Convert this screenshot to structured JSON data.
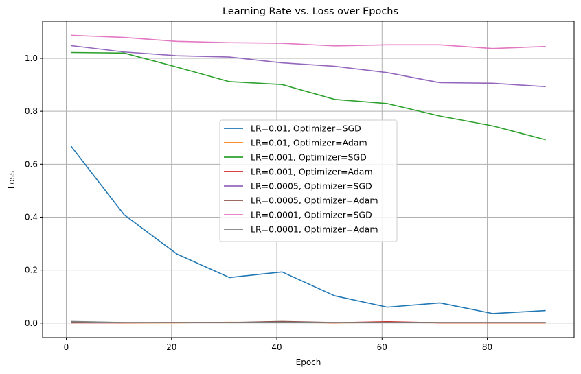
{
  "chart_data": {
    "type": "line",
    "title": "Learning Rate vs. Loss over Epochs",
    "xlabel": "Epoch",
    "ylabel": "Loss",
    "xlim": [
      -4.5,
      96.5
    ],
    "ylim": [
      -0.055,
      1.14
    ],
    "xticks": [
      0,
      20,
      40,
      60,
      80
    ],
    "yticks": [
      0.0,
      0.2,
      0.4,
      0.6,
      0.8,
      1.0
    ],
    "ytick_labels": [
      "0.0",
      "0.2",
      "0.4",
      "0.6",
      "0.8",
      "1.0"
    ],
    "grid": true,
    "legend_position": "center",
    "x": [
      1,
      11,
      21,
      31,
      41,
      51,
      61,
      71,
      81,
      91
    ],
    "series": [
      {
        "name": "LR=0.01, Optimizer=SGD",
        "color": "#1f77b4",
        "values": [
          0.666,
          0.409,
          0.261,
          0.172,
          0.193,
          0.103,
          0.06,
          0.076,
          0.036,
          0.047
        ]
      },
      {
        "name": "LR=0.01, Optimizer=Adam",
        "color": "#ff7f0e",
        "values": [
          0.002,
          0.001,
          0.001,
          0.003,
          0.002,
          0.001,
          0.002,
          0.001,
          0.001,
          0.001
        ]
      },
      {
        "name": "LR=0.001, Optimizer=SGD",
        "color": "#2ca02c",
        "values": [
          1.022,
          1.02,
          0.967,
          0.912,
          0.901,
          0.845,
          0.829,
          0.782,
          0.745,
          0.693
        ]
      },
      {
        "name": "LR=0.001, Optimizer=Adam",
        "color": "#d62728",
        "values": [
          0.001,
          0.001,
          0.002,
          0.002,
          0.004,
          0.001,
          0.005,
          0.001,
          0.001,
          0.001
        ]
      },
      {
        "name": "LR=0.0005, Optimizer=SGD",
        "color": "#9467bd",
        "values": [
          1.048,
          1.024,
          1.01,
          1.005,
          0.983,
          0.97,
          0.946,
          0.908,
          0.906,
          0.893
        ]
      },
      {
        "name": "LR=0.0005, Optimizer=Adam",
        "color": "#8c564b",
        "values": [
          0.004,
          0.002,
          0.002,
          0.002,
          0.006,
          0.002,
          0.003,
          0.002,
          0.002,
          0.002
        ]
      },
      {
        "name": "LR=0.0001, Optimizer=SGD",
        "color": "#e377c2",
        "values": [
          1.087,
          1.079,
          1.064,
          1.059,
          1.057,
          1.047,
          1.051,
          1.051,
          1.037,
          1.045
        ]
      },
      {
        "name": "LR=0.0001, Optimizer=Adam",
        "color": "#7f7f7f",
        "values": [
          0.006,
          0.002,
          0.002,
          0.002,
          0.003,
          0.002,
          0.002,
          0.002,
          0.002,
          0.002
        ]
      }
    ]
  }
}
